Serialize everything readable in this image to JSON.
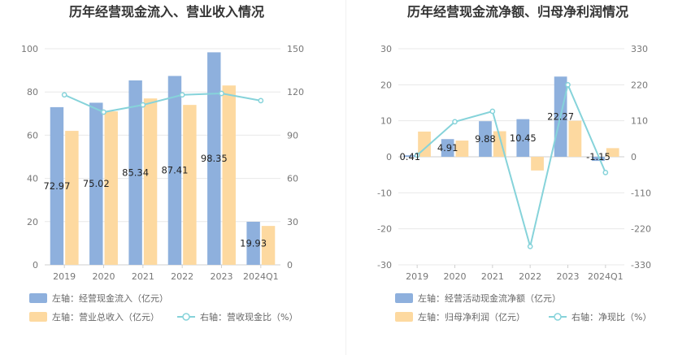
{
  "colors": {
    "blue_bar": "#8eb0dd",
    "orange_bar": "#fdd9a0",
    "line": "#86d3da",
    "grid": "#e8e8e8"
  },
  "chart_data": [
    {
      "type": "bar",
      "title": "历年经营现金流入、营业收入情况",
      "categories": [
        "2019",
        "2020",
        "2021",
        "2022",
        "2023",
        "2024Q1"
      ],
      "left_axis": {
        "range": [
          0,
          100
        ],
        "ticks": [
          "0",
          "20",
          "40",
          "60",
          "80",
          "100"
        ]
      },
      "right_axis": {
        "range": [
          0,
          150
        ],
        "ticks": [
          "0",
          "30",
          "60",
          "90",
          "120",
          "150"
        ]
      },
      "grid": true,
      "series": [
        {
          "name": "左轴：经营现金流入（亿元）",
          "kind": "bar",
          "axis": "left",
          "color": "#8eb0dd",
          "values": [
            72.97,
            75.02,
            85.34,
            87.41,
            98.35,
            19.93
          ],
          "labels": [
            "72.97",
            "75.02",
            "85.34",
            "87.41",
            "98.35",
            "19.93"
          ]
        },
        {
          "name": "左轴：营业总收入（亿元）",
          "kind": "bar",
          "axis": "left",
          "color": "#fdd9a0",
          "values": [
            62,
            71,
            77,
            74,
            83,
            18
          ]
        },
        {
          "name": "右轴：营收现金比（%）",
          "kind": "line",
          "axis": "right",
          "color": "#86d3da",
          "values": [
            118,
            106,
            111,
            118,
            119,
            114
          ]
        }
      ],
      "legend_position": "bottom"
    },
    {
      "type": "bar",
      "title": "历年经营现金流净额、归母净利润情况",
      "categories": [
        "2019",
        "2020",
        "2021",
        "2022",
        "2023",
        "2024Q1"
      ],
      "left_axis": {
        "range": [
          -30,
          30
        ],
        "ticks": [
          "-30",
          "-20",
          "-10",
          "0",
          "10",
          "20",
          "30"
        ]
      },
      "right_axis": {
        "range": [
          -330,
          330
        ],
        "ticks": [
          "-330",
          "-220",
          "-110",
          "0",
          "110",
          "220",
          "330"
        ]
      },
      "grid": true,
      "series": [
        {
          "name": "左轴：经营活动现金流净额（亿元）",
          "kind": "bar",
          "axis": "left",
          "color": "#8eb0dd",
          "values": [
            0.41,
            4.91,
            9.88,
            10.45,
            22.27,
            -1.15
          ],
          "labels": [
            "0.41",
            "4.91",
            "9.88",
            "10.45",
            "22.27",
            "-1.15"
          ]
        },
        {
          "name": "左轴：归母净利润（亿元）",
          "kind": "bar",
          "axis": "left",
          "color": "#fdd9a0",
          "values": [
            7,
            4.5,
            7.1,
            -3.8,
            10,
            2.4
          ]
        },
        {
          "name": "右轴：净现比（%）",
          "kind": "line",
          "axis": "right",
          "color": "#86d3da",
          "values": [
            5,
            107,
            139,
            -274,
            220,
            -48
          ]
        }
      ],
      "legend_position": "bottom"
    }
  ]
}
